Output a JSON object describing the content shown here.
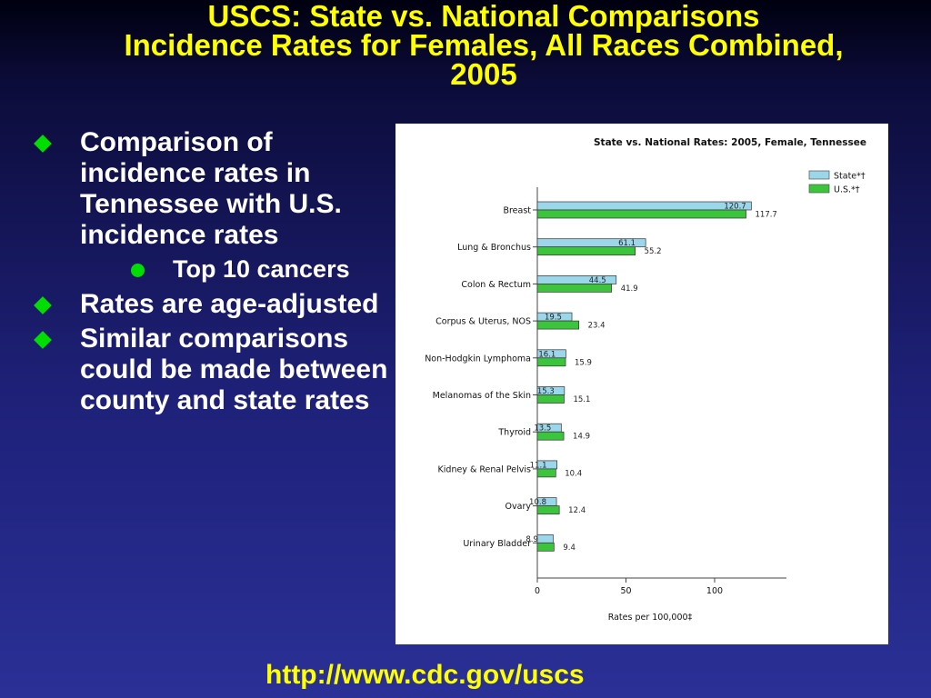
{
  "slide": {
    "title_lines": [
      "USCS: State vs. National Comparisons",
      "Incidence Rates for Females, All Races Combined,",
      "2005"
    ],
    "bullets": [
      {
        "text": "Comparison of incidence rates in Tennessee with U.S. incidence rates",
        "sub": [
          "Top 10 cancers"
        ]
      },
      {
        "text": "Rates are age-adjusted"
      },
      {
        "text": "Similar comparisons could be made between county and state rates"
      }
    ],
    "url": "http://www.cdc.gov/uscs"
  },
  "colors": {
    "title": "#ffff00",
    "bullet_marker": "#00dd00",
    "state_bar": "#9cd6ea",
    "us_bar": "#3cc43c"
  },
  "chart_data": {
    "type": "bar",
    "orientation": "horizontal",
    "title": "State vs. National Rates: 2005, Female, Tennessee",
    "xlabel": "Rates per 100,000‡",
    "ylabel": "",
    "xlim": [
      0,
      140
    ],
    "xticks": [
      0,
      50,
      100
    ],
    "grid": false,
    "legend_position": "top-right",
    "categories": [
      "Breast",
      "Lung & Bronchus",
      "Colon & Rectum",
      "Corpus & Uterus, NOS",
      "Non-Hodgkin Lymphoma",
      "Melanomas of the Skin",
      "Thyroid",
      "Kidney & Renal Pelvis",
      "Ovary",
      "Urinary Bladder"
    ],
    "series": [
      {
        "name": "State*†",
        "values": [
          120.7,
          61.1,
          44.5,
          19.5,
          16.1,
          15.3,
          13.5,
          11.1,
          10.8,
          8.9
        ]
      },
      {
        "name": "U.S.*†",
        "values": [
          117.7,
          55.2,
          41.9,
          23.4,
          15.9,
          15.1,
          14.9,
          10.4,
          12.4,
          9.4
        ]
      }
    ]
  }
}
